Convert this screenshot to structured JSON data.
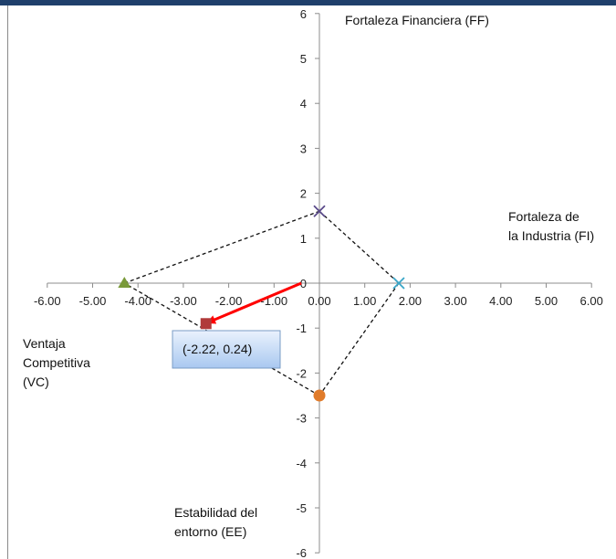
{
  "chart_data": {
    "type": "scatter",
    "title": "",
    "xlim": [
      -6,
      6
    ],
    "ylim": [
      -6,
      6
    ],
    "x_ticks": [
      "-6.00",
      "-5.00",
      "-4.00",
      "-3.00",
      "-2.00",
      "-1.00",
      "0.00",
      "1.00",
      "2.00",
      "3.00",
      "4.00",
      "5.00",
      "6.00"
    ],
    "y_ticks": [
      "6",
      "5",
      "4",
      "3",
      "2",
      "1",
      "0",
      "-1",
      "-2",
      "-3",
      "-4",
      "-5",
      "-6"
    ],
    "grid": false,
    "axis_titles": {
      "ff": "Fortaleza Financiera (FF)",
      "fi_line1": "Fortaleza de",
      "fi_line2": "la Industria (FI)",
      "vc_line1": "Ventaja",
      "vc_line2": "Competitiva",
      "vc_line3": "(VC)",
      "ee_line1": "Estabilidad del",
      "ee_line2": "entorno (EE)"
    },
    "points": [
      {
        "id": "ff",
        "x": 0.0,
        "y": 1.6,
        "marker": "x",
        "color": "#5a4a8a"
      },
      {
        "id": "fi",
        "x": 1.75,
        "y": 0.0,
        "marker": "x",
        "color": "#3aa6c8"
      },
      {
        "id": "ee",
        "x": 0.0,
        "y": -2.5,
        "marker": "circle",
        "color": "#e07b2a"
      },
      {
        "id": "vc",
        "x": -4.3,
        "y": 0.0,
        "marker": "triangle",
        "color": "#7a9a3a"
      },
      {
        "id": "result",
        "x": -2.5,
        "y": -0.9,
        "marker": "square",
        "color": "#b03a3a"
      }
    ],
    "polygon_order": [
      "ff",
      "fi",
      "ee",
      "vc"
    ],
    "arrow": {
      "from": [
        -0.4,
        0.0
      ],
      "to": [
        -2.5,
        -0.9
      ],
      "color": "#ff0000"
    },
    "callout": {
      "text": "(-2.22, 0.24)"
    }
  }
}
